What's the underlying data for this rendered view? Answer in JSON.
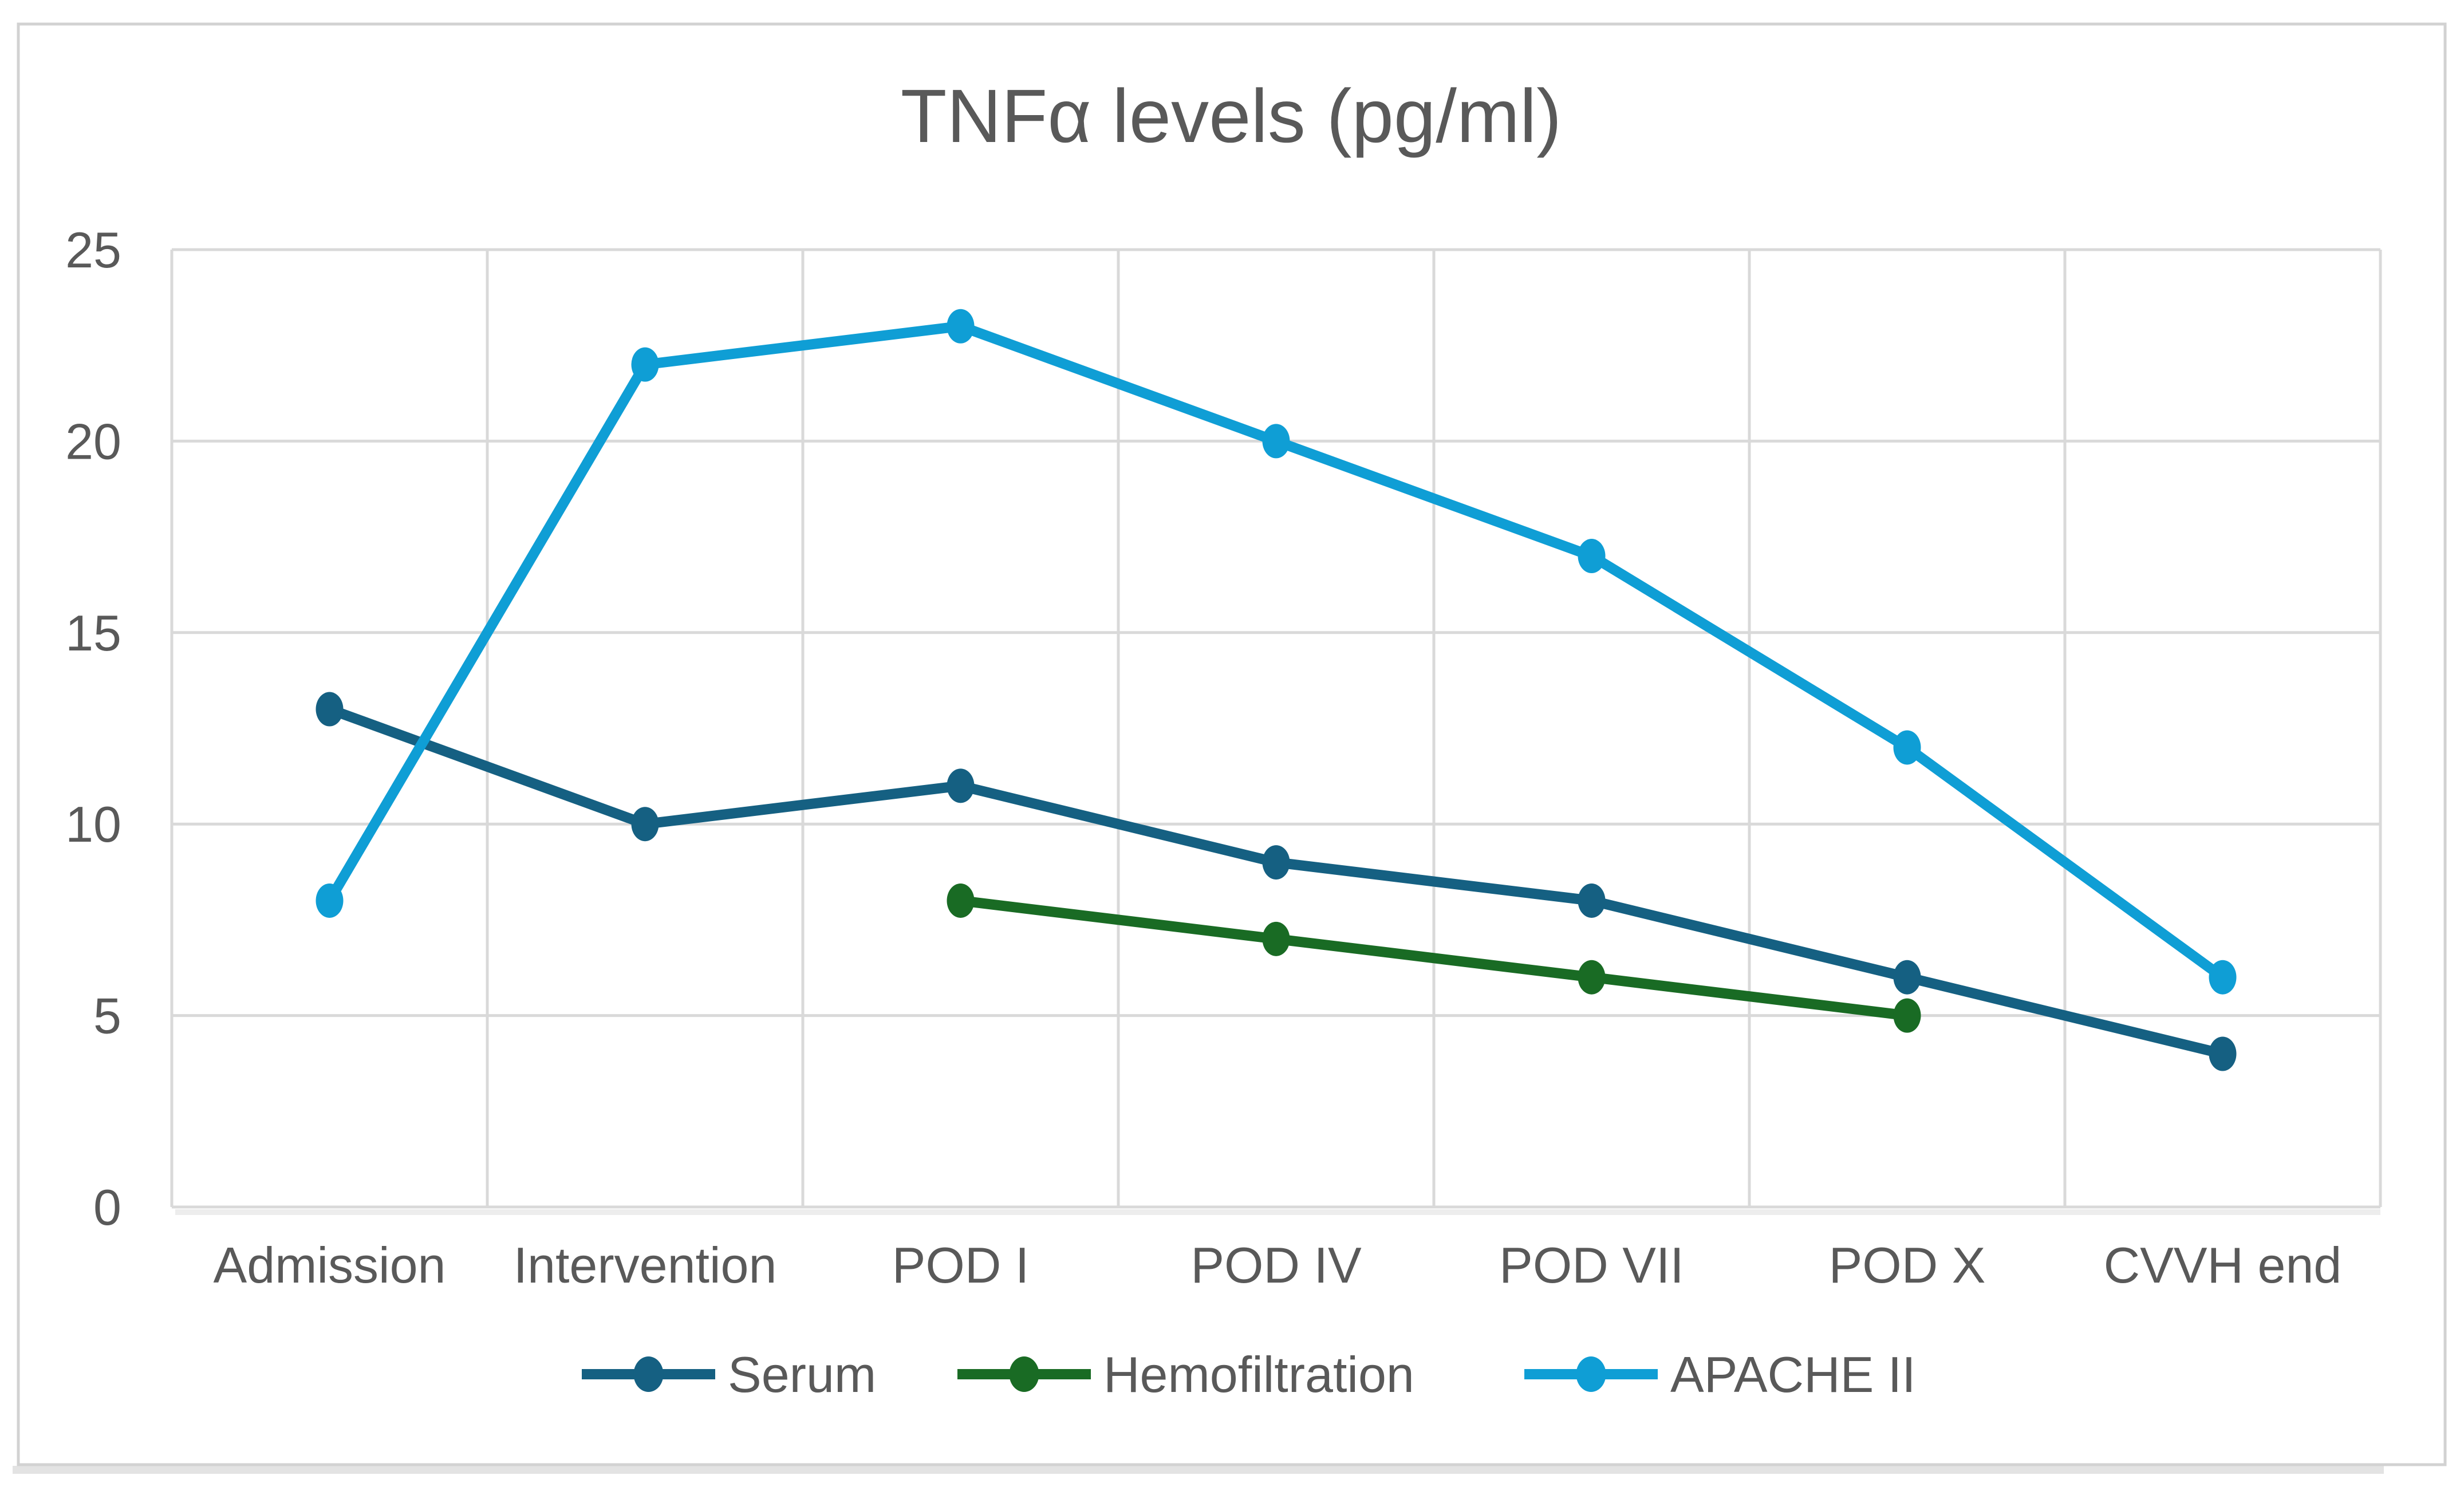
{
  "frame": {
    "background": "#FFFFFF",
    "border_color": "#D2D2D2",
    "shadow_color": "#E3E3E3",
    "plot_shadow_color": "#EDEDED"
  },
  "chart_data": {
    "type": "line",
    "title": "TNFα levels (pg/ml)",
    "categories": [
      "Admission",
      "Intervention",
      "POD I",
      "POD IV",
      "POD VII",
      "POD X",
      "CVVH end"
    ],
    "series": [
      {
        "name": "Serum",
        "color": "#156082",
        "values": [
          13,
          10,
          11,
          9,
          8,
          6,
          4
        ]
      },
      {
        "name": "Hemofiltration",
        "color": "#196B24",
        "values": [
          null,
          null,
          8,
          7,
          6,
          5,
          null
        ]
      },
      {
        "name": "APACHE II",
        "color": "#0F9ED5",
        "values": [
          8,
          22,
          23,
          20,
          17,
          12,
          6
        ]
      }
    ],
    "y_axis": {
      "min": 0,
      "max": 25,
      "step": 5,
      "tick_labels": [
        "0",
        "5",
        "10",
        "15",
        "20",
        "25"
      ]
    },
    "grid": true,
    "gridline_color": "#D9D9D9",
    "axis_text_color": "#595959",
    "title_color": "#595959",
    "legend_position": "bottom",
    "legend_entries": [
      "Serum",
      "Hemofiltration",
      "APACHE II"
    ]
  }
}
